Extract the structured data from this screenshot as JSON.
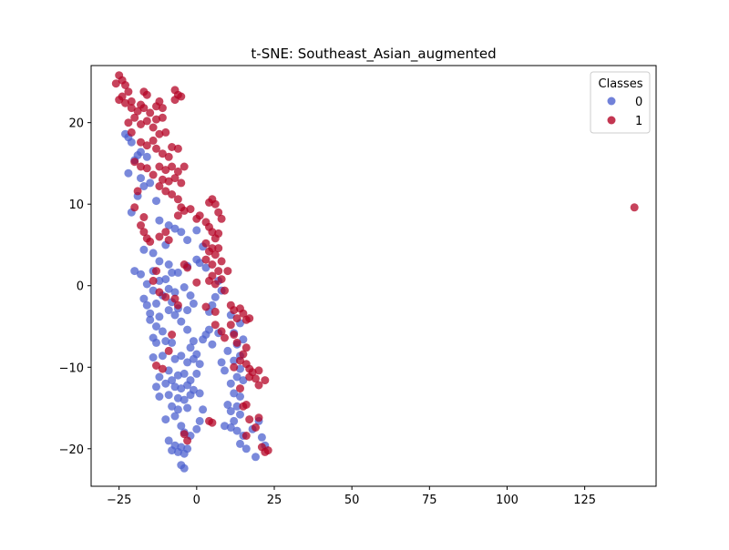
{
  "chart_data": {
    "type": "scatter",
    "title": "t-SNE: Southeast_Asian_augmented",
    "xlabel": "",
    "ylabel": "",
    "xlim": [
      -34,
      148
    ],
    "ylim": [
      -24.6,
      27
    ],
    "xticks": [
      -25,
      0,
      25,
      50,
      75,
      100,
      125
    ],
    "yticks": [
      -20,
      -10,
      0,
      10,
      20
    ],
    "grid": false,
    "legend": {
      "title": "Classes",
      "placement": "top-right"
    },
    "series": [
      {
        "name": "0",
        "color": "#4e62cf",
        "points": [
          [
            -23,
            18.6
          ],
          [
            -22,
            18.2
          ],
          [
            -21,
            17.6
          ],
          [
            -19,
            16
          ],
          [
            -18,
            16.4
          ],
          [
            -20,
            15.4
          ],
          [
            -16,
            15.8
          ],
          [
            -22,
            13.8
          ],
          [
            -18,
            13.2
          ],
          [
            -17,
            12.2
          ],
          [
            -15,
            12.6
          ],
          [
            -19,
            11
          ],
          [
            -13,
            10.4
          ],
          [
            -21,
            9
          ],
          [
            -12,
            8
          ],
          [
            -9,
            7.4
          ],
          [
            -7,
            7
          ],
          [
            -5,
            6.6
          ],
          [
            -3,
            5.6
          ],
          [
            -10,
            5
          ],
          [
            0,
            6.8
          ],
          [
            2,
            4.8
          ],
          [
            -17,
            4.4
          ],
          [
            -14,
            4
          ],
          [
            -12,
            3
          ],
          [
            -9,
            2.6
          ],
          [
            -8,
            1.6
          ],
          [
            -6,
            1.6
          ],
          [
            -3,
            2.4
          ],
          [
            0,
            3.2
          ],
          [
            1,
            2.8
          ],
          [
            3,
            2.2
          ],
          [
            -20,
            1.8
          ],
          [
            -18,
            1.4
          ],
          [
            -14,
            1.8
          ],
          [
            -12,
            0.6
          ],
          [
            -10,
            0.8
          ],
          [
            -16,
            0.2
          ],
          [
            -14,
            -0.6
          ],
          [
            -9,
            -0.4
          ],
          [
            -7,
            -0.8
          ],
          [
            -4,
            -0.2
          ],
          [
            -2,
            -1.2
          ],
          [
            -17,
            -1.6
          ],
          [
            -13,
            -2.2
          ],
          [
            -11,
            -1.2
          ],
          [
            -8,
            -2
          ],
          [
            -6,
            -2.8
          ],
          [
            -3,
            -3
          ],
          [
            -1,
            -2.2
          ],
          [
            -16,
            -2.4
          ],
          [
            -15,
            -3.4
          ],
          [
            -12,
            -3.8
          ],
          [
            -9,
            -3
          ],
          [
            -7,
            -3.6
          ],
          [
            -5,
            -4.4
          ],
          [
            -15,
            -4.2
          ],
          [
            -13,
            -5
          ],
          [
            -11,
            -5.6
          ],
          [
            -14,
            -6.4
          ],
          [
            -10,
            -6.8
          ],
          [
            -3,
            -5.4
          ],
          [
            -1,
            -6.8
          ],
          [
            2,
            -6.6
          ],
          [
            3,
            -6
          ],
          [
            5,
            -7.2
          ],
          [
            -2,
            -7.6
          ],
          [
            0,
            -8.4
          ],
          [
            -13,
            -7
          ],
          [
            -8,
            -7
          ],
          [
            -14,
            -8.8
          ],
          [
            -11,
            -8.6
          ],
          [
            -7,
            -9
          ],
          [
            -5,
            -8.6
          ],
          [
            -3,
            -9.4
          ],
          [
            -1,
            -9
          ],
          [
            1,
            -9.6
          ],
          [
            -9,
            -10.4
          ],
          [
            -12,
            -11.2
          ],
          [
            -8,
            -11.6
          ],
          [
            -6,
            -11
          ],
          [
            -4,
            -10.8
          ],
          [
            -2,
            -11.6
          ],
          [
            0,
            -10.8
          ],
          [
            -13,
            -12.4
          ],
          [
            -10,
            -12
          ],
          [
            -7,
            -12.4
          ],
          [
            -5,
            -12.6
          ],
          [
            -3,
            -12.2
          ],
          [
            -1,
            -12.8
          ],
          [
            -12,
            -13.6
          ],
          [
            -9,
            -13.4
          ],
          [
            -6,
            -13.8
          ],
          [
            -4,
            -14
          ],
          [
            -2,
            -13.4
          ],
          [
            1,
            -13.2
          ],
          [
            -8,
            -14.8
          ],
          [
            -6,
            -15.2
          ],
          [
            -3,
            -15
          ],
          [
            -10,
            -16.4
          ],
          [
            -7,
            -16
          ],
          [
            -5,
            -17.2
          ],
          [
            0,
            -17.6
          ],
          [
            2,
            -15.2
          ],
          [
            -4,
            -18
          ],
          [
            -2,
            -18.4
          ],
          [
            1,
            -16.6
          ],
          [
            -9,
            -19
          ],
          [
            -7,
            -19.6
          ],
          [
            -5,
            -19.8
          ],
          [
            -3,
            -20
          ],
          [
            -6,
            -20.4
          ],
          [
            -4,
            -20.6
          ],
          [
            -8,
            -20.2
          ],
          [
            -5,
            -22
          ],
          [
            -4,
            -22.4
          ],
          [
            10,
            -8
          ],
          [
            12,
            -9.2
          ],
          [
            14,
            -10.2
          ],
          [
            8,
            -9.4
          ],
          [
            9,
            -10.4
          ],
          [
            13,
            -11.2
          ],
          [
            15,
            -11.6
          ],
          [
            11,
            -12
          ],
          [
            12,
            -13.2
          ],
          [
            14,
            -13.6
          ],
          [
            10,
            -14.6
          ],
          [
            13,
            -14.8
          ],
          [
            11,
            -15.4
          ],
          [
            14,
            -15.8
          ],
          [
            12,
            -16.6
          ],
          [
            9,
            -17.2
          ],
          [
            11,
            -17.4
          ],
          [
            13,
            -17.8
          ],
          [
            15,
            -18.4
          ],
          [
            14,
            -19.4
          ],
          [
            16,
            -20
          ],
          [
            20,
            -16.6
          ],
          [
            18,
            -17.6
          ],
          [
            21,
            -18.6
          ],
          [
            22,
            -19.6
          ],
          [
            19,
            -21
          ],
          [
            11,
            -3.6
          ],
          [
            14,
            -4.6
          ],
          [
            12,
            -5.8
          ],
          [
            15,
            -6.6
          ],
          [
            13,
            -7.2
          ],
          [
            14,
            -8.6
          ],
          [
            4,
            -5.4
          ],
          [
            7,
            -5.8
          ],
          [
            4,
            -3.2
          ],
          [
            5,
            -2.4
          ],
          [
            6,
            -1.4
          ],
          [
            7,
            0.6
          ],
          [
            8,
            -0.6
          ]
        ]
      },
      {
        "name": "1",
        "color": "#b40426",
        "points": [
          [
            -25,
            25.8
          ],
          [
            -24,
            25.2
          ],
          [
            -26,
            24.8
          ],
          [
            -23,
            24.6
          ],
          [
            -22,
            23.8
          ],
          [
            -24,
            23.2
          ],
          [
            -25,
            22.8
          ],
          [
            -23,
            22.4
          ],
          [
            -21,
            21.8
          ],
          [
            -19,
            21.4
          ],
          [
            -21,
            22.6
          ],
          [
            -18,
            22.2
          ],
          [
            -17,
            21.8
          ],
          [
            -15,
            21.2
          ],
          [
            -13,
            22
          ],
          [
            -12,
            22.6
          ],
          [
            -11,
            21.8
          ],
          [
            -16,
            23.4
          ],
          [
            -17,
            23.8
          ],
          [
            -7,
            24
          ],
          [
            -6,
            23.4
          ],
          [
            -5,
            23.2
          ],
          [
            -7,
            22.8
          ],
          [
            -20,
            20.6
          ],
          [
            -22,
            20
          ],
          [
            -18,
            19.8
          ],
          [
            -16,
            20.2
          ],
          [
            -14,
            19.4
          ],
          [
            -12,
            18.6
          ],
          [
            -10,
            18.8
          ],
          [
            -13,
            20.4
          ],
          [
            -11,
            20.6
          ],
          [
            -21,
            18.8
          ],
          [
            -18,
            17.6
          ],
          [
            -16,
            17.2
          ],
          [
            -14,
            17.8
          ],
          [
            -13,
            16.8
          ],
          [
            -11,
            16.2
          ],
          [
            -8,
            17
          ],
          [
            -6,
            16.8
          ],
          [
            -9,
            15.8
          ],
          [
            -20,
            15.2
          ],
          [
            -18,
            14.6
          ],
          [
            -16,
            14.4
          ],
          [
            -12,
            14.6
          ],
          [
            -10,
            14.2
          ],
          [
            -8,
            14.6
          ],
          [
            -6,
            14
          ],
          [
            -4,
            14.6
          ],
          [
            -14,
            13.6
          ],
          [
            -11,
            13
          ],
          [
            -9,
            12.8
          ],
          [
            -7,
            13.2
          ],
          [
            -5,
            12.6
          ],
          [
            -12,
            12.2
          ],
          [
            -10,
            11.6
          ],
          [
            -8,
            11.2
          ],
          [
            -6,
            10.6
          ],
          [
            -19,
            11.6
          ],
          [
            -20,
            9.6
          ],
          [
            -17,
            8.4
          ],
          [
            -18,
            7.4
          ],
          [
            -17,
            6.6
          ],
          [
            -16,
            5.8
          ],
          [
            -15,
            5.4
          ],
          [
            -12,
            6
          ],
          [
            -10,
            6.6
          ],
          [
            -9,
            5.6
          ],
          [
            -6,
            8.6
          ],
          [
            -5,
            9.6
          ],
          [
            -4,
            9.2
          ],
          [
            -2,
            9.4
          ],
          [
            0,
            8.2
          ],
          [
            1,
            8.6
          ],
          [
            3,
            7.8
          ],
          [
            4,
            10.2
          ],
          [
            5,
            10.6
          ],
          [
            6,
            10
          ],
          [
            7,
            9
          ],
          [
            8,
            8.2
          ],
          [
            4,
            7.2
          ],
          [
            5,
            6.6
          ],
          [
            6,
            5.8
          ],
          [
            7,
            6.4
          ],
          [
            3,
            5.2
          ],
          [
            5,
            4.6
          ],
          [
            7,
            4.6
          ],
          [
            4,
            4.2
          ],
          [
            6,
            3.8
          ],
          [
            8,
            3
          ],
          [
            3,
            3.2
          ],
          [
            5,
            2.6
          ],
          [
            7,
            1.8
          ],
          [
            5,
            1.2
          ],
          [
            4,
            0.6
          ],
          [
            6,
            0.2
          ],
          [
            8,
            0.8
          ],
          [
            10,
            1.8
          ],
          [
            9,
            -0.6
          ],
          [
            0,
            0.4
          ],
          [
            -4,
            2.6
          ],
          [
            -3,
            2.2
          ],
          [
            -13,
            1.8
          ],
          [
            -14,
            0.6
          ],
          [
            -12,
            -0.8
          ],
          [
            -10,
            -1.4
          ],
          [
            -7,
            -1.6
          ],
          [
            -6,
            -2.4
          ],
          [
            3,
            -2.6
          ],
          [
            6,
            -3.2
          ],
          [
            11,
            -2.4
          ],
          [
            12,
            -3
          ],
          [
            14,
            -2.8
          ],
          [
            15,
            -3.4
          ],
          [
            13,
            -4
          ],
          [
            11,
            -4.8
          ],
          [
            16,
            -4.2
          ],
          [
            17,
            -4
          ],
          [
            6,
            -4.8
          ],
          [
            8,
            -5.6
          ],
          [
            9,
            -6.4
          ],
          [
            12,
            -6
          ],
          [
            13,
            -7
          ],
          [
            16,
            -7.6
          ],
          [
            15,
            -8.4
          ],
          [
            16,
            -9.6
          ],
          [
            14,
            -9.2
          ],
          [
            12,
            -10
          ],
          [
            17,
            -10.2
          ],
          [
            18,
            -10.6
          ],
          [
            20,
            -10.4
          ],
          [
            17,
            -11.2
          ],
          [
            20,
            -12.2
          ],
          [
            22,
            -11.6
          ],
          [
            19,
            -11.4
          ],
          [
            14,
            -12.6
          ],
          [
            16,
            -14.6
          ],
          [
            17,
            -16.4
          ],
          [
            19,
            -17.4
          ],
          [
            20,
            -16.2
          ],
          [
            16,
            -18.4
          ],
          [
            21,
            -19.8
          ],
          [
            22,
            -20.4
          ],
          [
            23,
            -20.2
          ],
          [
            15,
            -14.8
          ],
          [
            4,
            -16.6
          ],
          [
            5,
            -16.8
          ],
          [
            -4,
            -18.2
          ],
          [
            -3,
            -19
          ],
          [
            -8,
            -6
          ],
          [
            -9,
            -8
          ],
          [
            -11,
            -10.2
          ],
          [
            -13,
            -9.8
          ],
          [
            141,
            9.6
          ]
        ]
      }
    ]
  }
}
